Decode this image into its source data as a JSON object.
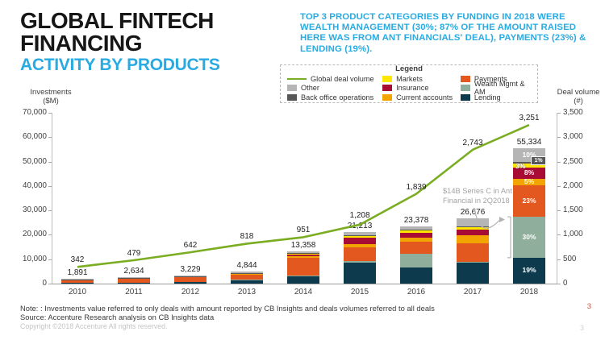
{
  "header": {
    "title_line1": "GLOBAL FINTECH",
    "title_line2": "FINANCING",
    "subtitle": "ACTIVITY BY PRODUCTS",
    "callout": "TOP 3 PRODUCT CATEGORIES BY FUNDING IN 2018 WERE WEALTH MANAGEMENT (30%; 87% OF THE AMOUNT RAISED HERE WAS FROM ANT FINANCIALS' DEAL), PAYMENTS (23%) & LENDING (19%)."
  },
  "colors": {
    "accent_cyan": "#29abe2",
    "line_green": "#7aad21",
    "payments": "#e2581f",
    "current_accounts": "#f2a400",
    "markets": "#ffe600",
    "insurance": "#a80c35",
    "wealth": "#8fae9c",
    "lending": "#0e3a4d",
    "other": "#b5b5b5",
    "backoffice": "#575757"
  },
  "legend": {
    "title": "Legend",
    "columns": [
      [
        {
          "swatch": "line",
          "color": "#7aad21",
          "label": "Global deal volume"
        },
        {
          "swatch": "box",
          "color": "#b5b5b5",
          "label": "Other"
        },
        {
          "swatch": "box",
          "color": "#575757",
          "label": "Back office operations"
        }
      ],
      [
        {
          "swatch": "box",
          "color": "#ffe600",
          "label": "Markets"
        },
        {
          "swatch": "box",
          "color": "#a80c35",
          "label": "Insurance"
        },
        {
          "swatch": "box",
          "color": "#f2a400",
          "label": "Current accounts"
        }
      ],
      [
        {
          "swatch": "box",
          "color": "#e2581f",
          "label": "Payments"
        },
        {
          "swatch": "box",
          "color": "#8fae9c",
          "label": "Wealth Mgmt & AM"
        },
        {
          "swatch": "box",
          "color": "#0e3a4d",
          "label": "Lending"
        }
      ]
    ]
  },
  "chart_data": {
    "type": "bar",
    "subtype": "stacked-bars-with-line-overlay",
    "categories": [
      "2010",
      "2011",
      "2012",
      "2013",
      "2014",
      "2015",
      "2016",
      "2017",
      "2018"
    ],
    "bar_totals": [
      1891,
      2634,
      3229,
      4844,
      13358,
      21213,
      23378,
      26676,
      55334
    ],
    "bar_total_labels": [
      "1,891",
      "2,634",
      "3,229",
      "4,844",
      "13,358",
      "21,213",
      "23,378",
      "26,676",
      "55,334"
    ],
    "line_series": {
      "name": "Global deal volume",
      "values": [
        342,
        479,
        642,
        818,
        951,
        1208,
        1839,
        2743,
        3251
      ],
      "labels": [
        "342",
        "479",
        "642",
        "818",
        "951",
        "1,208",
        "1,839",
        "2,743",
        "3,251"
      ]
    },
    "left_axis": {
      "title_line1": "Investments",
      "title_line2": "($M)",
      "min": 0,
      "max": 70000,
      "tick_step": 10000,
      "tick_labels": [
        "0",
        "10,000",
        "20,000",
        "30,000",
        "40,000",
        "50,000",
        "60,000",
        "70,000"
      ]
    },
    "right_axis": {
      "title_line1": "Deal volume",
      "title_line2": "(#)",
      "min": 0,
      "max": 3500,
      "tick_step": 500,
      "tick_labels": [
        "0",
        "500",
        "1,000",
        "1,500",
        "2,000",
        "2,500",
        "3,000",
        "3,500"
      ]
    },
    "stack_order_bottom_to_top": [
      "Lending",
      "Wealth Mgmt & AM",
      "Payments",
      "Current accounts",
      "Insurance",
      "Markets",
      "Back office operations",
      "Other"
    ],
    "segments": [
      {
        "name": "Lending",
        "key": "lending",
        "color": "#0e3a4d",
        "pct_2018_label": "19%",
        "fractions_est": [
          0.1,
          0.13,
          0.22,
          0.3,
          0.22,
          0.4,
          0.28,
          0.32,
          0.19
        ]
      },
      {
        "name": "Wealth Mgmt & AM",
        "key": "wealth",
        "color": "#8fae9c",
        "pct_2018_label": "30%",
        "fractions_est": [
          0,
          0,
          0,
          0.02,
          0.02,
          0.04,
          0.24,
          0.02,
          0.3
        ]
      },
      {
        "name": "Payments",
        "key": "payments",
        "color": "#e2581f",
        "pct_2018_label": "23%",
        "fractions_est": [
          0.74,
          0.7,
          0.64,
          0.45,
          0.56,
          0.26,
          0.22,
          0.28,
          0.23
        ]
      },
      {
        "name": "Current accounts",
        "key": "current",
        "color": "#f2a400",
        "pct_2018_label": "5%",
        "fractions_est": [
          0.05,
          0.05,
          0.04,
          0.08,
          0.05,
          0.07,
          0.07,
          0.12,
          0.05
        ]
      },
      {
        "name": "Insurance",
        "key": "insurance",
        "color": "#a80c35",
        "pct_2018_label": "8%",
        "fractions_est": [
          0,
          0.02,
          0.02,
          0.03,
          0.05,
          0.11,
          0.08,
          0.09,
          0.08
        ]
      },
      {
        "name": "Markets",
        "key": "markets",
        "color": "#ffe600",
        "pct_2018_label": "3%",
        "fractions_est": [
          0,
          0,
          0,
          0.02,
          0.02,
          0.04,
          0.04,
          0.04,
          0.03
        ]
      },
      {
        "name": "Back office operations",
        "key": "backoffice",
        "color": "#575757",
        "pct_2018_label": "1%",
        "fractions_est": [
          0.04,
          0.03,
          0.02,
          0.02,
          0.01,
          0.01,
          0.01,
          0.01,
          0.01
        ]
      },
      {
        "name": "Other",
        "key": "other",
        "color": "#b5b5b5",
        "pct_2018_label": "10%",
        "fractions_est": [
          0.07,
          0.07,
          0.06,
          0.08,
          0.07,
          0.07,
          0.06,
          0.12,
          0.1
        ]
      }
    ],
    "annotation": "$14B Series C in Ant Financial in 2Q2018"
  },
  "footer": {
    "note_line1": "Note: : Investments value referred to only deals with amount reported by CB Insights and deals volumes referred to all deals",
    "note_line2": "Source: Accenture Research analysis on CB Insights data",
    "copyright": "Copyright ©2018 Accenture All rights reserved.",
    "page_number": "3"
  }
}
